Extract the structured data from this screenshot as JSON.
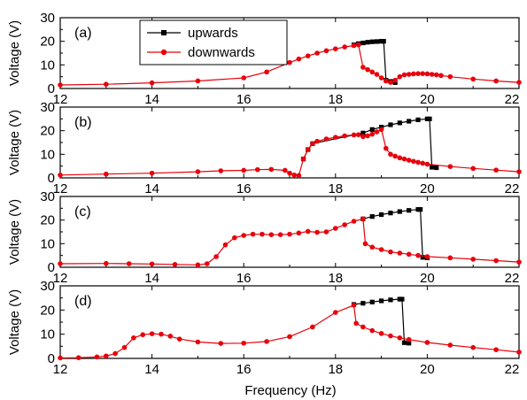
{
  "chart_data": {
    "type": "line",
    "xlabel": "Frequency (Hz)",
    "xlim": [
      12,
      22
    ],
    "xticks": [
      "12",
      "14",
      "16",
      "18",
      "20",
      "22"
    ],
    "legend": {
      "placement": "top-center",
      "entries": [
        {
          "name": "upwards",
          "color": "#000000",
          "marker": "square"
        },
        {
          "name": "downwards",
          "color": "#e8000b",
          "marker": "circle"
        }
      ]
    },
    "panels": [
      {
        "label": "(a)",
        "ylabel": "Voltage (V)",
        "ylim": [
          0,
          30
        ],
        "yticks": [
          "0",
          "10",
          "20",
          "30"
        ],
        "series": [
          {
            "name": "upwards",
            "color": "#000000",
            "x": [
              18.4,
              18.5,
              18.6,
              18.7,
              18.8,
              18.9,
              19.0,
              19.05,
              19.1,
              19.2,
              19.3
            ],
            "y": [
              18.5,
              19.0,
              19.3,
              19.6,
              19.8,
              19.9,
              20.0,
              20.0,
              3.5,
              3.0,
              2.5
            ]
          },
          {
            "name": "downwards",
            "color": "#e8000b",
            "x": [
              12,
              13,
              14,
              15,
              16,
              16.5,
              17,
              17.2,
              17.4,
              17.6,
              17.8,
              18.0,
              18.2,
              18.4,
              18.5,
              18.6,
              18.7,
              18.8,
              18.9,
              19.0,
              19.1,
              19.2,
              19.3,
              19.4,
              19.5,
              19.6,
              19.7,
              19.8,
              19.9,
              20.0,
              20.1,
              20.2,
              20.3,
              20.5,
              21.0,
              21.5,
              22.0
            ],
            "y": [
              1.5,
              1.8,
              2.4,
              3.2,
              4.5,
              7.0,
              11.0,
              12.5,
              13.8,
              15.0,
              16.0,
              16.8,
              17.6,
              18.2,
              18.5,
              9.0,
              8.0,
              7.0,
              6.0,
              4.5,
              3.2,
              2.6,
              3.5,
              5.0,
              5.8,
              6.0,
              6.2,
              6.3,
              6.3,
              6.2,
              6.0,
              5.8,
              5.5,
              5.0,
              4.0,
              3.2,
              2.6
            ]
          }
        ]
      },
      {
        "label": "(b)",
        "ylabel": "Voltage (V)",
        "ylim": [
          0,
          30
        ],
        "yticks": [
          "0",
          "10",
          "20",
          "30"
        ],
        "series": [
          {
            "name": "upwards",
            "color": "#000000",
            "x": [
              17.3,
              17.4,
              17.5,
              18.6,
              18.8,
              19.0,
              19.2,
              19.4,
              19.6,
              19.8,
              20.0,
              20.05,
              20.1,
              20.2
            ],
            "y": [
              8.0,
              12.0,
              14.5,
              19.0,
              20.5,
              21.5,
              22.5,
              23.3,
              24.0,
              24.6,
              25.0,
              25.0,
              4.5,
              4.3
            ]
          },
          {
            "name": "downwards",
            "color": "#e8000b",
            "x": [
              12,
              13,
              14,
              15,
              15.5,
              16,
              16.3,
              16.6,
              16.9,
              17.0,
              17.1,
              17.2,
              17.3,
              17.4,
              17.5,
              17.6,
              17.8,
              18.0,
              18.2,
              18.4,
              18.5,
              18.6,
              18.7,
              18.8,
              18.9,
              19.0,
              19.1,
              19.2,
              19.3,
              19.4,
              19.5,
              19.6,
              19.7,
              19.8,
              19.9,
              20.0,
              20.5,
              21.0,
              21.5,
              22.0
            ],
            "y": [
              1.2,
              1.6,
              2.0,
              2.6,
              3.0,
              3.2,
              3.5,
              3.6,
              3.2,
              2.0,
              1.2,
              1.0,
              8.0,
              12.0,
              14.5,
              15.5,
              16.5,
              17.2,
              17.8,
              18.2,
              18.3,
              17.5,
              17.8,
              18.5,
              19.5,
              20.5,
              12.5,
              10.0,
              9.2,
              8.5,
              8.0,
              7.5,
              7.0,
              6.6,
              6.2,
              5.8,
              4.8,
              4.0,
              3.3,
              2.6
            ]
          }
        ]
      },
      {
        "label": "(c)",
        "ylabel": "Voltage (V)",
        "ylim": [
          0,
          30
        ],
        "yticks": [
          "0",
          "10",
          "20",
          "30"
        ],
        "series": [
          {
            "name": "upwards",
            "color": "#000000",
            "x": [
              18.6,
              18.8,
              19.0,
              19.2,
              19.4,
              19.6,
              19.8,
              19.85,
              19.9,
              20.0
            ],
            "y": [
              20.5,
              21.5,
              22.3,
              23.0,
              23.6,
              24.1,
              24.5,
              24.5,
              4.2,
              4.0
            ]
          },
          {
            "name": "downwards",
            "color": "#e8000b",
            "x": [
              12,
              13,
              13.5,
              14,
              14.5,
              15,
              15.2,
              15.4,
              15.6,
              15.8,
              16.0,
              16.2,
              16.4,
              16.6,
              16.8,
              17.0,
              17.2,
              17.4,
              17.6,
              17.8,
              18.0,
              18.2,
              18.4,
              18.6,
              18.65,
              18.8,
              19.0,
              19.2,
              19.4,
              19.6,
              19.8,
              20.0,
              20.5,
              21.0,
              21.5,
              22.0
            ],
            "y": [
              1.5,
              1.6,
              1.5,
              1.4,
              1.2,
              1.0,
              1.5,
              4.5,
              9.5,
              12.5,
              13.5,
              14.0,
              14.0,
              13.8,
              13.8,
              14.0,
              14.5,
              15.2,
              14.8,
              15.0,
              16.5,
              18.0,
              19.5,
              20.5,
              10.0,
              8.5,
              7.5,
              6.5,
              6.0,
              5.5,
              5.0,
              4.5,
              4.0,
              3.4,
              2.8,
              2.2
            ]
          }
        ]
      },
      {
        "label": "(d)",
        "ylabel": "Voltage (V)",
        "ylim": [
          0,
          30
        ],
        "yticks": [
          "0",
          "10",
          "20",
          "30"
        ],
        "series": [
          {
            "name": "upwards",
            "color": "#000000",
            "x": [
              18.4,
              18.6,
              18.8,
              19.0,
              19.2,
              19.4,
              19.45,
              19.5,
              19.6
            ],
            "y": [
              22.3,
              22.8,
              23.3,
              23.8,
              24.2,
              24.5,
              24.5,
              6.5,
              6.3
            ]
          },
          {
            "name": "downwards",
            "color": "#e8000b",
            "x": [
              12,
              12.4,
              12.8,
              13.0,
              13.2,
              13.4,
              13.6,
              13.8,
              14.0,
              14.2,
              14.4,
              14.6,
              15.0,
              15.5,
              16.0,
              16.5,
              17.0,
              17.5,
              18.0,
              18.4,
              18.45,
              18.6,
              18.8,
              19.0,
              19.2,
              19.4,
              19.6,
              20.0,
              20.5,
              21.0,
              21.5,
              22.0
            ],
            "y": [
              0.2,
              0.3,
              0.6,
              1.0,
              2.0,
              4.5,
              8.5,
              9.8,
              10.2,
              10.0,
              9.2,
              8.0,
              6.8,
              6.2,
              6.3,
              7.0,
              9.0,
              13.0,
              19.0,
              22.0,
              14.5,
              13.0,
              11.5,
              10.3,
              9.3,
              8.5,
              7.8,
              6.6,
              5.5,
              4.5,
              3.6,
              2.6
            ]
          }
        ]
      }
    ]
  }
}
